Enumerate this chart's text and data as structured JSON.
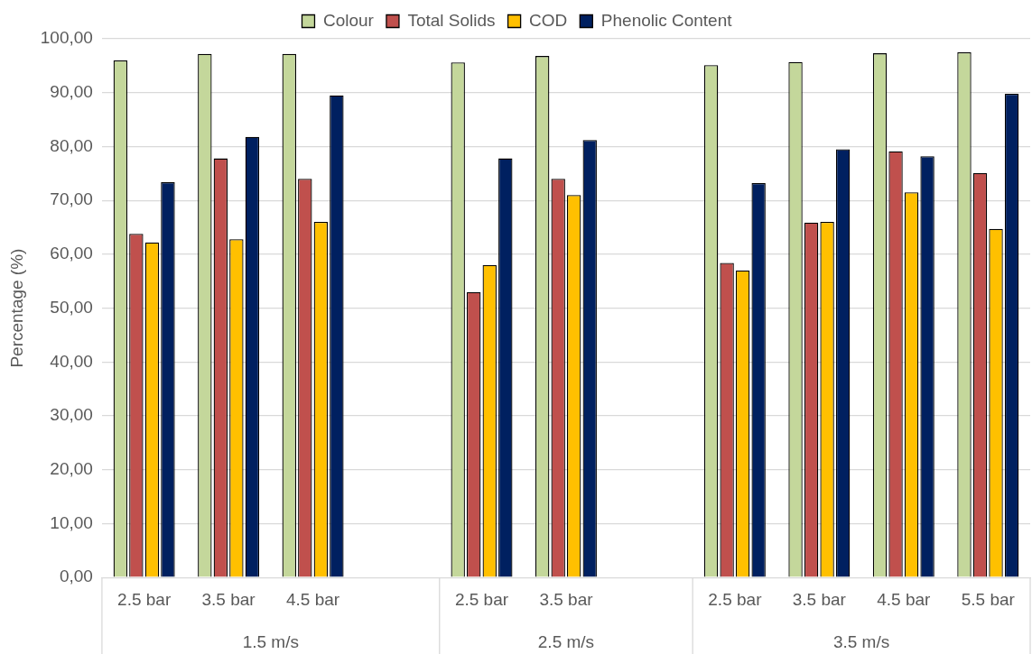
{
  "chart_data": {
    "type": "bar",
    "ylabel": "Percentage (%)",
    "categories": [
      "2.5 bar",
      "3.5 bar",
      "4.5 bar",
      null,
      "2.5 bar",
      "3.5 bar",
      null,
      "2.5 bar",
      "3.5 bar",
      "4.5 bar",
      "5.5 bar"
    ],
    "annotations": [
      "1.5 m/s",
      "2.5 m/s",
      "3.5 m/s"
    ],
    "series": [
      {
        "name": "Colour",
        "color": "#c4d79b",
        "values": [
          96.0,
          97.2,
          97.2,
          null,
          95.6,
          96.8,
          null,
          95.1,
          95.7,
          97.3,
          97.5
        ]
      },
      {
        "name": "Total Solids",
        "color": "#c0504d",
        "values": [
          63.8,
          77.8,
          74.0,
          null,
          53.0,
          74.0,
          null,
          58.4,
          65.9,
          79.1,
          75.1
        ]
      },
      {
        "name": "COD",
        "color": "#ffc000",
        "values": [
          62.2,
          62.8,
          66.0,
          null,
          58.0,
          71.0,
          null,
          57.0,
          66.0,
          71.5,
          64.7
        ]
      },
      {
        "name": "Phenolic Content",
        "color": "#002060",
        "values": [
          73.4,
          81.8,
          89.5,
          null,
          77.8,
          81.2,
          null,
          73.2,
          79.5,
          78.2,
          89.8
        ]
      }
    ],
    "ylim": [
      0,
      100
    ],
    "yticks": [
      {
        "value": 0,
        "label": "0,00"
      },
      {
        "value": 10,
        "label": "10,00"
      },
      {
        "value": 20,
        "label": "20,00"
      },
      {
        "value": 30,
        "label": "30,00"
      },
      {
        "value": 40,
        "label": "40,00"
      },
      {
        "value": 50,
        "label": "50,00"
      },
      {
        "value": 60,
        "label": "60,00"
      },
      {
        "value": 70,
        "label": "70,00"
      },
      {
        "value": 80,
        "label": "80,00"
      },
      {
        "value": 90,
        "label": "90,00"
      },
      {
        "value": 100,
        "label": "100,00"
      }
    ],
    "grid": "y",
    "legend": "top"
  }
}
